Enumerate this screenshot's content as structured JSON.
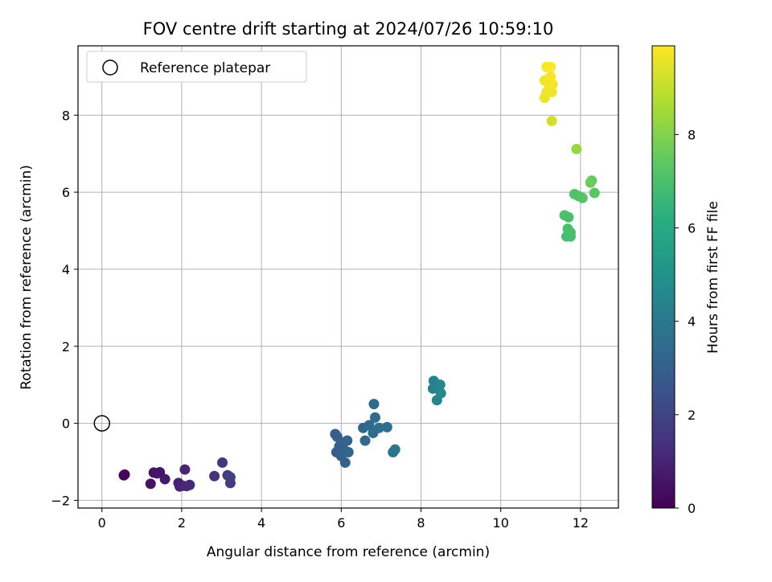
{
  "chart_data": {
    "type": "scatter",
    "title": "FOV centre drift starting at 2024/07/26 10:59:10",
    "xlabel": "Angular distance from reference (arcmin)",
    "ylabel": "Rotation from reference (arcmin)",
    "xlim": [
      -0.6,
      12.95
    ],
    "ylim": [
      -2.2,
      9.8
    ],
    "xticks": [
      0,
      2,
      4,
      6,
      8,
      10,
      12
    ],
    "yticks": [
      -2,
      0,
      2,
      4,
      6,
      8
    ],
    "grid": true,
    "legend": {
      "placement": "top-left",
      "entries": [
        "Reference platepar"
      ]
    },
    "reference_point": {
      "x": 0,
      "y": 0
    },
    "colorbar": {
      "label": "Hours from first FF file",
      "range": [
        0,
        9.9
      ],
      "ticks": [
        0,
        2,
        4,
        6,
        8
      ],
      "colormap": "viridis"
    },
    "points": [
      {
        "x": 0.55,
        "y": -1.35,
        "c": 0.1
      },
      {
        "x": 0.57,
        "y": -1.33,
        "c": 0.15
      },
      {
        "x": 1.22,
        "y": -1.57,
        "c": 0.5
      },
      {
        "x": 1.3,
        "y": -1.28,
        "c": 0.45
      },
      {
        "x": 1.45,
        "y": -1.27,
        "c": 0.55
      },
      {
        "x": 1.38,
        "y": -1.3,
        "c": 0.6
      },
      {
        "x": 1.58,
        "y": -1.45,
        "c": 0.7
      },
      {
        "x": 1.92,
        "y": -1.55,
        "c": 0.85
      },
      {
        "x": 1.95,
        "y": -1.64,
        "c": 0.95
      },
      {
        "x": 2.02,
        "y": -1.62,
        "c": 1.0
      },
      {
        "x": 2.08,
        "y": -1.2,
        "c": 1.05
      },
      {
        "x": 2.12,
        "y": -1.63,
        "c": 1.1
      },
      {
        "x": 2.2,
        "y": -1.6,
        "c": 1.15
      },
      {
        "x": 2.82,
        "y": -1.37,
        "c": 1.45
      },
      {
        "x": 3.02,
        "y": -1.02,
        "c": 1.55
      },
      {
        "x": 3.15,
        "y": -1.35,
        "c": 1.65
      },
      {
        "x": 3.22,
        "y": -1.55,
        "c": 1.75
      },
      {
        "x": 3.22,
        "y": -1.4,
        "c": 1.8
      },
      {
        "x": 5.85,
        "y": -0.28,
        "c": 2.9
      },
      {
        "x": 5.9,
        "y": -0.35,
        "c": 2.95
      },
      {
        "x": 5.88,
        "y": -0.75,
        "c": 3.0
      },
      {
        "x": 5.95,
        "y": -0.6,
        "c": 3.05
      },
      {
        "x": 6.0,
        "y": -0.85,
        "c": 3.05
      },
      {
        "x": 6.05,
        "y": -0.5,
        "c": 3.1
      },
      {
        "x": 6.08,
        "y": -0.7,
        "c": 3.1
      },
      {
        "x": 6.1,
        "y": -1.02,
        "c": 3.15
      },
      {
        "x": 6.15,
        "y": -0.45,
        "c": 3.15
      },
      {
        "x": 6.18,
        "y": -0.75,
        "c": 3.2
      },
      {
        "x": 6.55,
        "y": -0.12,
        "c": 3.3
      },
      {
        "x": 6.6,
        "y": -0.45,
        "c": 3.35
      },
      {
        "x": 6.7,
        "y": -0.05,
        "c": 3.4
      },
      {
        "x": 6.8,
        "y": -0.25,
        "c": 3.45
      },
      {
        "x": 6.82,
        "y": 0.5,
        "c": 3.45
      },
      {
        "x": 6.85,
        "y": 0.15,
        "c": 3.5
      },
      {
        "x": 6.95,
        "y": -0.12,
        "c": 3.55
      },
      {
        "x": 7.15,
        "y": -0.1,
        "c": 3.65
      },
      {
        "x": 7.3,
        "y": -0.75,
        "c": 3.8
      },
      {
        "x": 7.35,
        "y": -0.68,
        "c": 3.85
      },
      {
        "x": 8.32,
        "y": 1.1,
        "c": 4.4
      },
      {
        "x": 8.3,
        "y": 0.9,
        "c": 4.45
      },
      {
        "x": 8.4,
        "y": 0.6,
        "c": 4.5
      },
      {
        "x": 8.48,
        "y": 1.0,
        "c": 4.55
      },
      {
        "x": 8.5,
        "y": 0.78,
        "c": 4.6
      },
      {
        "x": 11.1,
        "y": 8.45,
        "c": 9.6
      },
      {
        "x": 11.15,
        "y": 8.6,
        "c": 9.65
      },
      {
        "x": 11.1,
        "y": 8.9,
        "c": 9.7
      },
      {
        "x": 11.15,
        "y": 9.25,
        "c": 9.8
      },
      {
        "x": 11.22,
        "y": 8.75,
        "c": 9.75
      },
      {
        "x": 11.25,
        "y": 9.0,
        "c": 9.8
      },
      {
        "x": 11.25,
        "y": 9.25,
        "c": 9.85
      },
      {
        "x": 11.28,
        "y": 8.6,
        "c": 9.7
      },
      {
        "x": 11.3,
        "y": 8.8,
        "c": 9.75
      },
      {
        "x": 11.28,
        "y": 7.85,
        "c": 9.2
      },
      {
        "x": 11.9,
        "y": 7.12,
        "c": 8.3
      },
      {
        "x": 11.6,
        "y": 5.4,
        "c": 7.05
      },
      {
        "x": 11.7,
        "y": 5.35,
        "c": 7.0
      },
      {
        "x": 11.68,
        "y": 5.05,
        "c": 6.95
      },
      {
        "x": 11.65,
        "y": 4.85,
        "c": 6.9
      },
      {
        "x": 11.75,
        "y": 4.85,
        "c": 6.9
      },
      {
        "x": 11.75,
        "y": 4.95,
        "c": 6.95
      },
      {
        "x": 11.85,
        "y": 5.95,
        "c": 7.1
      },
      {
        "x": 11.95,
        "y": 5.9,
        "c": 7.15
      },
      {
        "x": 12.05,
        "y": 5.85,
        "c": 7.2
      },
      {
        "x": 12.28,
        "y": 6.3,
        "c": 7.4
      },
      {
        "x": 12.25,
        "y": 6.25,
        "c": 7.6
      },
      {
        "x": 12.35,
        "y": 5.98,
        "c": 7.3
      }
    ]
  }
}
